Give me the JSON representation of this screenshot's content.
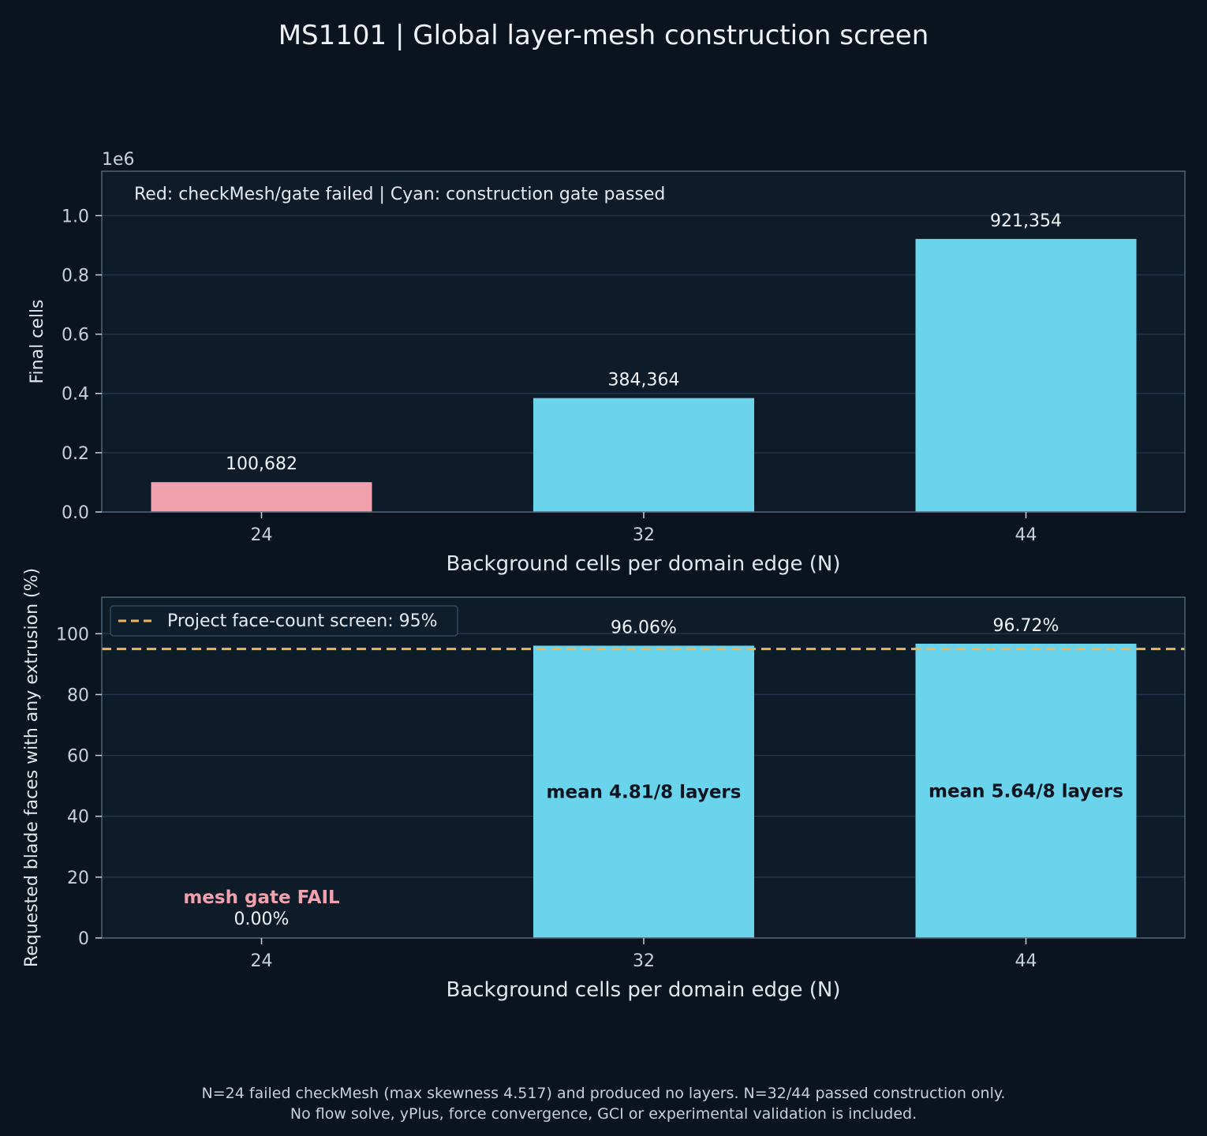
{
  "title": "MS1101 | Global layer-mesh construction screen",
  "colors": {
    "background": "#0b141e",
    "panel": "#0e1b29",
    "frame": "#4f6477",
    "grid": "#22354a",
    "fail": "#f0a1ad",
    "pass": "#69d4ec",
    "threshold": "#e8b85a"
  },
  "chart_data": [
    {
      "type": "bar",
      "categories": [
        "24",
        "32",
        "44"
      ],
      "values": [
        100682,
        384364,
        921354
      ],
      "value_labels": [
        "100,682",
        "384,364",
        "921,354"
      ],
      "bar_status": [
        "fail",
        "pass",
        "pass"
      ],
      "xlabel": "Background cells per domain edge (N)",
      "ylabel": "Final cells",
      "ylim": [
        0,
        1150000
      ],
      "yticks": [
        "0.0",
        "0.2",
        "0.4",
        "0.6",
        "0.8",
        "1.0"
      ],
      "ytick_values": [
        0,
        200000,
        400000,
        600000,
        800000,
        1000000
      ],
      "offset_label": "1e6",
      "grid": true,
      "annotation": "Red: checkMesh/gate failed   |   Cyan: construction gate passed"
    },
    {
      "type": "bar",
      "categories": [
        "24",
        "32",
        "44"
      ],
      "values": [
        0.0,
        96.06,
        96.72
      ],
      "value_labels": [
        "0.00%",
        "96.06%",
        "96.72%"
      ],
      "bar_status": [
        "fail",
        "pass",
        "pass"
      ],
      "bar_annotations": [
        "mesh gate FAIL",
        "mean 4.81/8 layers",
        "mean 5.64/8 layers"
      ],
      "xlabel": "Background cells per domain edge (N)",
      "ylabel": "Requested blade faces with any extrusion (%)",
      "ylim": [
        0,
        112
      ],
      "yticks": [
        "0",
        "20",
        "40",
        "60",
        "80",
        "100"
      ],
      "ytick_values": [
        0,
        20,
        40,
        60,
        80,
        100
      ],
      "grid": true,
      "threshold": {
        "value": 95,
        "label": "Project face-count screen: 95%"
      },
      "legend_position": "top-left"
    }
  ],
  "footnote": [
    "N=24 failed checkMesh (max skewness 4.517) and produced no layers. N=32/44 passed construction only.",
    "No flow solve, yPlus, force convergence, GCI or experimental validation is included."
  ]
}
